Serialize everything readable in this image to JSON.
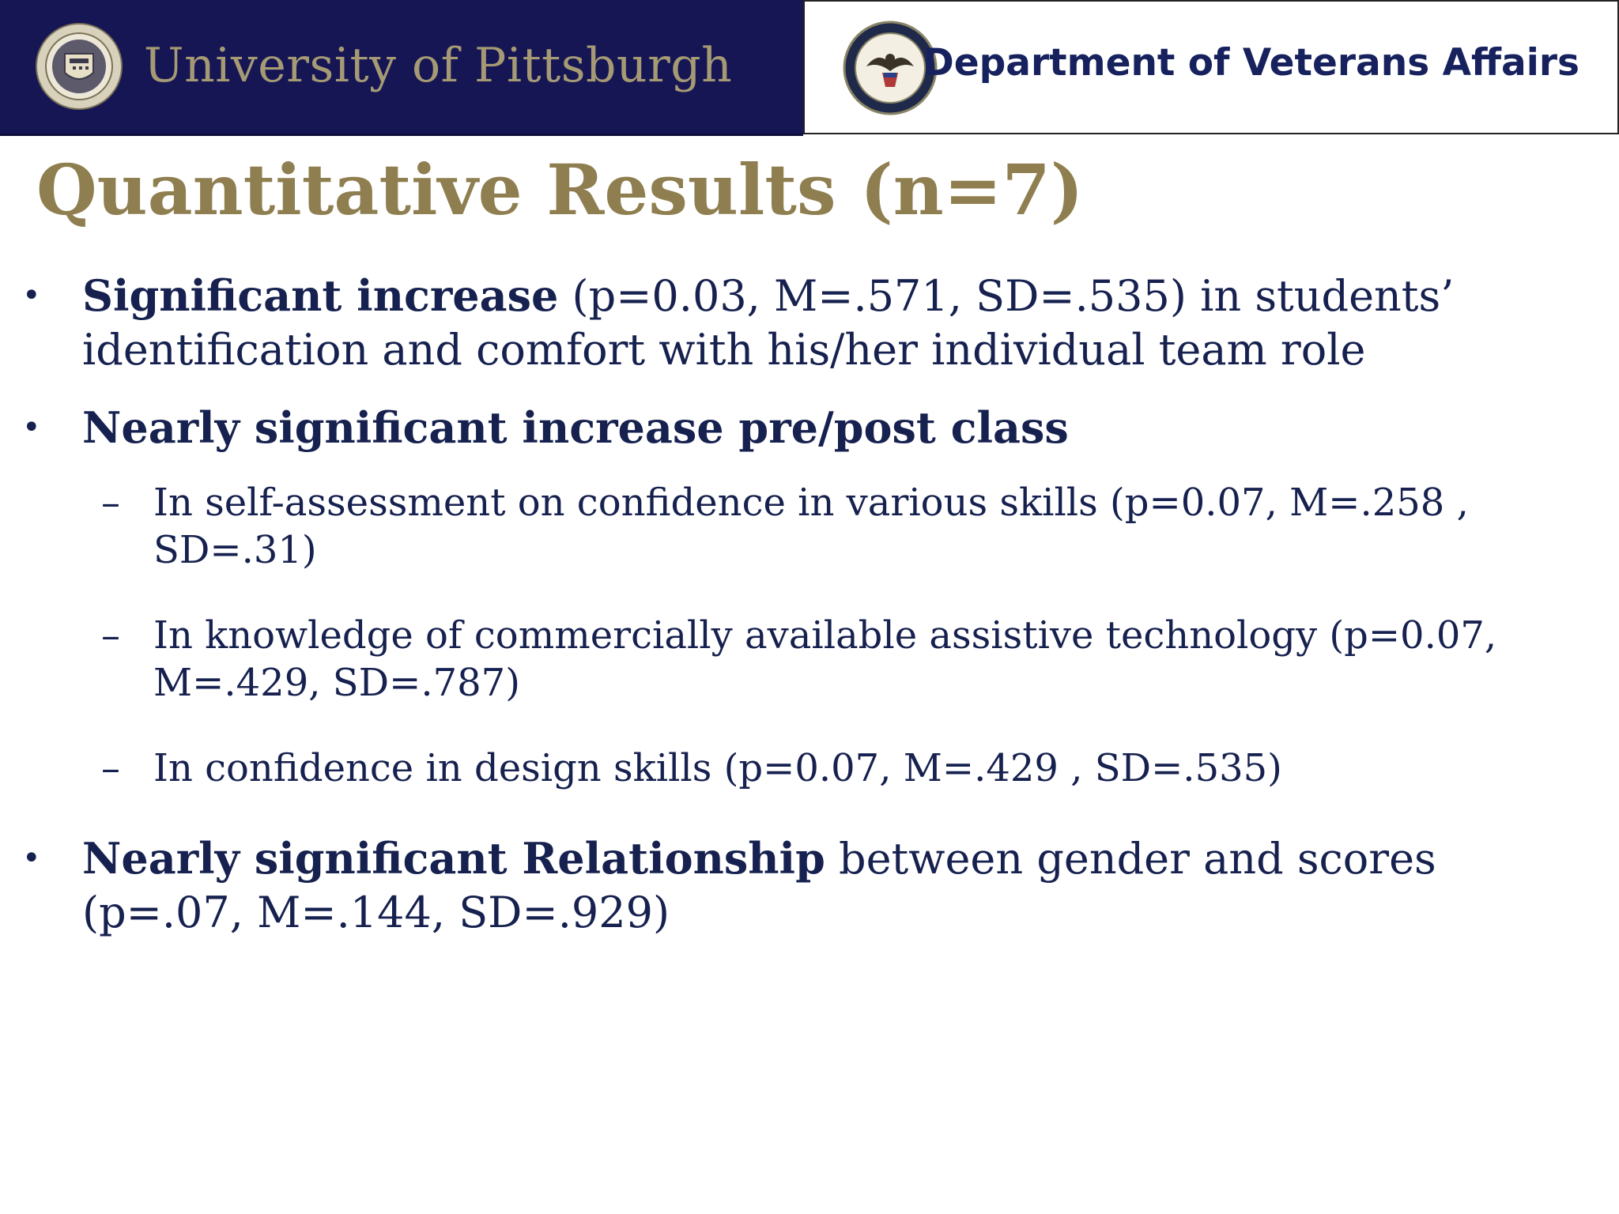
{
  "header": {
    "left_org": "University of Pittsburgh",
    "right_org": "Department of Veterans Affairs"
  },
  "title": "Quantitative Results (n=7)",
  "bullets": [
    {
      "bold": "Significant increase",
      "text": " (p=0.03, M=.571, SD=.535) in students’ identification and comfort with his/her individual team role"
    },
    {
      "bold": "Nearly significant increase pre/post class",
      "text": "",
      "subitems": [
        "In self-assessment on confidence in various skills (p=0.07, M=.258 , SD=.31)",
        "In knowledge of commercially available assistive technology (p=0.07, M=.429, SD=.787)",
        "In confidence in design skills (p=0.07, M=.429 , SD=.535)"
      ]
    },
    {
      "bold": "Nearly significant Relationship",
      "text": " between gender and scores (p=.07, M=.144, SD=.929)"
    }
  ],
  "colors": {
    "pitt_navy": "#161655",
    "pitt_gold": "#a59a74",
    "title_gold": "#8f7f50",
    "body_navy": "#16214f"
  },
  "icons": {
    "left_logo": "pitt-seal-icon",
    "right_logo": "va-seal-icon"
  }
}
